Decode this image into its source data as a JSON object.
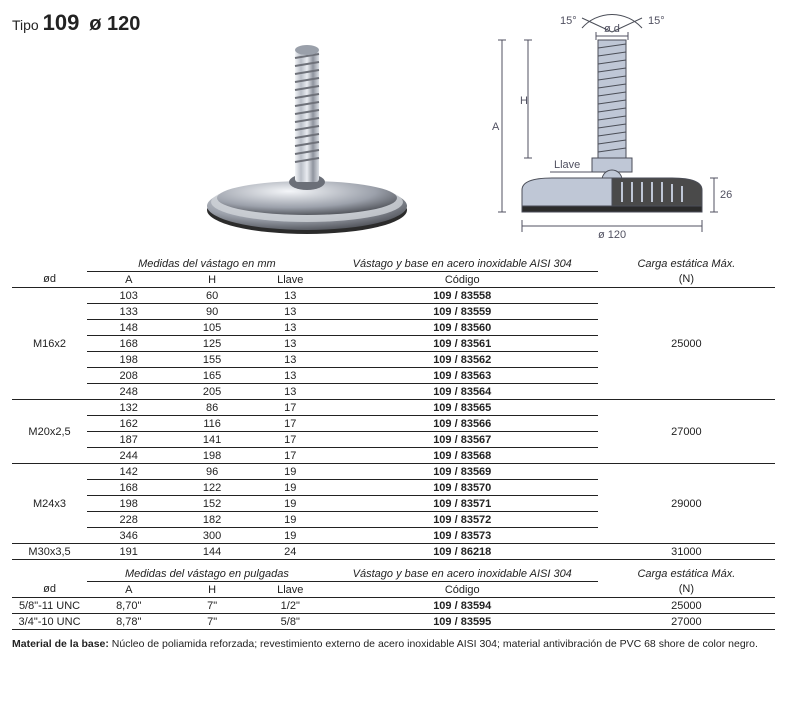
{
  "title": {
    "tipo_label": "Tipo",
    "tipo_value": "109",
    "diameter": "ø 120"
  },
  "diagram": {
    "angle_left": "15°",
    "angle_right": "15°",
    "dim_od": "ø d",
    "dim_H": "H",
    "dim_A": "A",
    "dim_llave": "Llave",
    "dim_base_h": "26",
    "dim_base_d": "ø 120"
  },
  "tables": {
    "mm": {
      "band_measures": "Medidas del vástago en mm",
      "band_code": "Vástago y base en acero inoxidable AISI 304",
      "band_load": "Carga estática Máx.",
      "head_od": "ød",
      "head_A": "A",
      "head_H": "H",
      "head_ll": "Llave",
      "head_code": "Código",
      "head_load_unit": "(N)",
      "groups": [
        {
          "od": "M16x2",
          "load": "25000",
          "rows": [
            {
              "A": "103",
              "H": "60",
              "ll": "13",
              "code": "109 / 83558"
            },
            {
              "A": "133",
              "H": "90",
              "ll": "13",
              "code": "109 / 83559"
            },
            {
              "A": "148",
              "H": "105",
              "ll": "13",
              "code": "109 / 83560"
            },
            {
              "A": "168",
              "H": "125",
              "ll": "13",
              "code": "109 / 83561"
            },
            {
              "A": "198",
              "H": "155",
              "ll": "13",
              "code": "109 / 83562"
            },
            {
              "A": "208",
              "H": "165",
              "ll": "13",
              "code": "109 / 83563"
            },
            {
              "A": "248",
              "H": "205",
              "ll": "13",
              "code": "109 / 83564"
            }
          ]
        },
        {
          "od": "M20x2,5",
          "load": "27000",
          "rows": [
            {
              "A": "132",
              "H": "86",
              "ll": "17",
              "code": "109 / 83565"
            },
            {
              "A": "162",
              "H": "116",
              "ll": "17",
              "code": "109 / 83566"
            },
            {
              "A": "187",
              "H": "141",
              "ll": "17",
              "code": "109 / 83567"
            },
            {
              "A": "244",
              "H": "198",
              "ll": "17",
              "code": "109 / 83568"
            }
          ]
        },
        {
          "od": "M24x3",
          "load": "29000",
          "rows": [
            {
              "A": "142",
              "H": "96",
              "ll": "19",
              "code": "109 / 83569"
            },
            {
              "A": "168",
              "H": "122",
              "ll": "19",
              "code": "109 / 83570"
            },
            {
              "A": "198",
              "H": "152",
              "ll": "19",
              "code": "109 / 83571"
            },
            {
              "A": "228",
              "H": "182",
              "ll": "19",
              "code": "109 / 83572"
            },
            {
              "A": "346",
              "H": "300",
              "ll": "19",
              "code": "109 / 83573"
            }
          ]
        },
        {
          "od": "M30x3,5",
          "load": "31000",
          "rows": [
            {
              "A": "191",
              "H": "144",
              "ll": "24",
              "code": "109 / 86218"
            }
          ]
        }
      ]
    },
    "in": {
      "band_measures": "Medidas del vástago en pulgadas",
      "rows": [
        {
          "od": "5/8\"-11 UNC",
          "A": "8,70\"",
          "H": "7\"",
          "ll": "1/2\"",
          "code": "109 / 83594",
          "load": "25000"
        },
        {
          "od": "3/4\"-10 UNC",
          "A": "8,78\"",
          "H": "7\"",
          "ll": "5/8\"",
          "code": "109 / 83595",
          "load": "27000"
        }
      ]
    }
  },
  "footer": {
    "label": "Material de la base:",
    "text": "Núcleo de poliamida reforzada; revestimiento externo de acero inoxidable AISI 304; material antivibración de PVC 68 shore de color negro."
  },
  "colors": {
    "steel_light": "#d9dde3",
    "steel_mid": "#a9aeb8",
    "steel_dark": "#55585f",
    "base_black": "#2b2b2b",
    "ring_silver": "#cfd3d8",
    "diag_fill": "#bfc7d6",
    "diag_stroke": "#4b4e58",
    "dim_color": "#505060"
  }
}
